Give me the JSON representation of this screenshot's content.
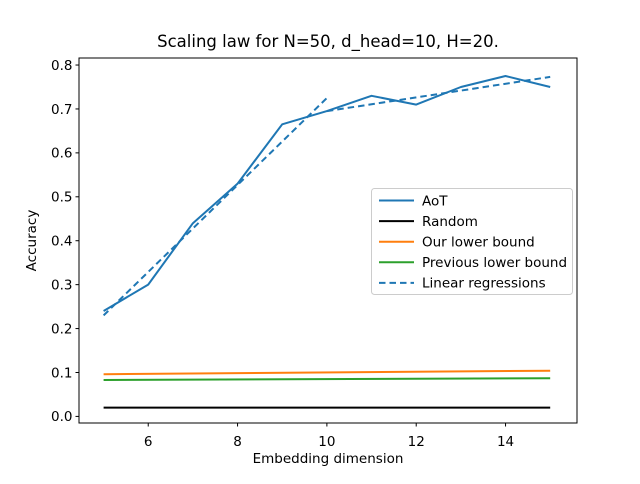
{
  "chart_data": {
    "type": "line",
    "title": "Scaling law for N=50, d_head=10, H=20.",
    "xlabel": "Embedding dimension",
    "ylabel": "Accuracy",
    "xlim": [
      4.45,
      15.6
    ],
    "ylim": [
      -0.015,
      0.816
    ],
    "xtick_values": [
      6,
      8,
      10,
      12,
      14
    ],
    "xtick_labels": [
      "6",
      "8",
      "10",
      "12",
      "14"
    ],
    "ytick_values": [
      0.0,
      0.1,
      0.2,
      0.3,
      0.4,
      0.5,
      0.6,
      0.7,
      0.8
    ],
    "ytick_labels": [
      "0.0",
      "0.1",
      "0.2",
      "0.3",
      "0.4",
      "0.5",
      "0.6",
      "0.7",
      "0.8"
    ],
    "grid": false,
    "legend": {
      "position": "center right",
      "edge_color": "#cccccc",
      "background": "#ffffff"
    },
    "series": [
      {
        "name": "AoT",
        "color": "#1f77b4",
        "dash": "solid",
        "segments": [
          [
            [
              5,
              0.24
            ],
            [
              6,
              0.3
            ],
            [
              7,
              0.44
            ],
            [
              8,
              0.53
            ],
            [
              9,
              0.665
            ],
            [
              10,
              0.695
            ],
            [
              11,
              0.73
            ],
            [
              12,
              0.71
            ],
            [
              13,
              0.75
            ],
            [
              14,
              0.775
            ],
            [
              15,
              0.75
            ]
          ]
        ]
      },
      {
        "name": "Random",
        "color": "#000000",
        "dash": "solid",
        "segments": [
          [
            [
              5,
              0.02
            ],
            [
              15,
              0.02
            ]
          ]
        ]
      },
      {
        "name": "Our lower bound",
        "color": "#ff7f0e",
        "dash": "solid",
        "segments": [
          [
            [
              5,
              0.096
            ],
            [
              15,
              0.104
            ]
          ]
        ]
      },
      {
        "name": "Previous lower bound",
        "color": "#2ca02c",
        "dash": "solid",
        "segments": [
          [
            [
              5,
              0.083
            ],
            [
              15,
              0.087
            ]
          ]
        ]
      },
      {
        "name": "Linear regressions",
        "color": "#1f77b4",
        "dash": "dashed",
        "segments": [
          [
            [
              5,
              0.23
            ],
            [
              10,
              0.725
            ]
          ],
          [
            [
              10,
              0.695
            ],
            [
              15,
              0.773
            ]
          ]
        ]
      }
    ]
  }
}
